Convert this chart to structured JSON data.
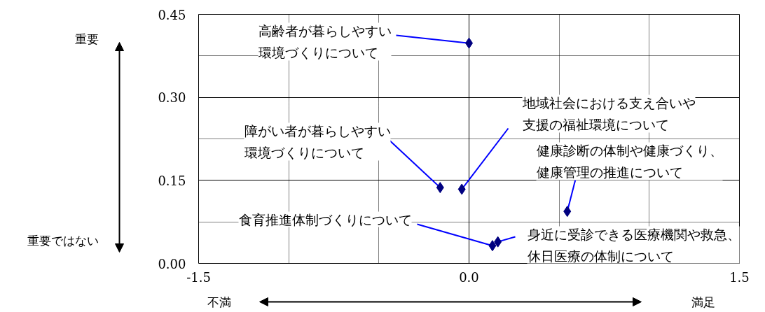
{
  "chart_data": {
    "type": "scatter",
    "marker": "diamond",
    "grid": true,
    "x": [
      0.0,
      -0.16,
      -0.04,
      0.545,
      0.13,
      0.16
    ],
    "series": [
      {
        "color": "#000080",
        "values": [
          0.398,
          0.137,
          0.134,
          0.094,
          0.032,
          0.039
        ]
      }
    ],
    "xlim": [
      -1.5,
      1.5
    ],
    "ylim": [
      0,
      0.45
    ],
    "xticks": [
      {
        "value": -1.5,
        "label": "-1.5"
      },
      {
        "value": 0,
        "label": "0.0"
      },
      {
        "value": 1.5,
        "label": "1.5"
      }
    ],
    "yticks": [
      {
        "value": 0,
        "label": "0.00"
      },
      {
        "value": 0.15,
        "label": "0.15"
      },
      {
        "value": 0.3,
        "label": "0.30"
      },
      {
        "value": 0.45,
        "label": "0.45"
      }
    ],
    "annotations": [
      {
        "text": "高齢者が暮らしやすい環境づくりについて",
        "x": 0.0,
        "y": 0.398
      },
      {
        "text": "障がい者が暮らしやすい環境づくりについて",
        "x": -0.16,
        "y": 0.137
      },
      {
        "text": "地域社会における支え合いや支援の福祉環境について",
        "x": -0.04,
        "y": 0.134
      },
      {
        "text": "健康診断の体制や健康づくり、健康管理の推進について",
        "x": 0.545,
        "y": 0.094
      },
      {
        "text": "食育推進体制づくりについて",
        "x": 0.13,
        "y": 0.032
      },
      {
        "text": "身近に受診できる医療機関や救急、休日医療の体制について",
        "x": 0.16,
        "y": 0.039
      },
      "重要",
      "重要ではない",
      "不満",
      "満足"
    ]
  }
}
